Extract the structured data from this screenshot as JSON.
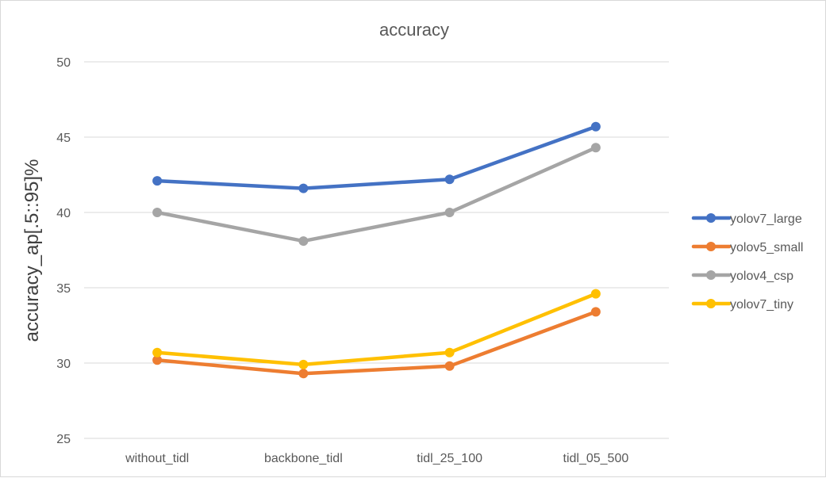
{
  "chart_data": {
    "type": "line",
    "title": "accuracy",
    "xlabel": "",
    "ylabel": "accuracy_ap[.5::95]%",
    "categories": [
      "without_tidl",
      "backbone_tidl",
      "tidl_25_100",
      "tidl_05_500"
    ],
    "ylim": [
      25,
      50
    ],
    "yticks": [
      25,
      30,
      35,
      40,
      45,
      50
    ],
    "grid": true,
    "legend": "right",
    "series": [
      {
        "name": "yolov7_large",
        "color": "#4472C4",
        "values": [
          42.1,
          41.6,
          42.2,
          45.7
        ]
      },
      {
        "name": "yolov5_small",
        "color": "#ED7D31",
        "values": [
          30.2,
          29.3,
          29.8,
          33.4
        ]
      },
      {
        "name": "yolov4_csp",
        "color": "#A5A5A5",
        "values": [
          40.0,
          38.1,
          40.0,
          44.3
        ]
      },
      {
        "name": "yolov7_tiny",
        "color": "#FFC000",
        "values": [
          30.7,
          29.9,
          30.7,
          34.6
        ]
      }
    ]
  }
}
